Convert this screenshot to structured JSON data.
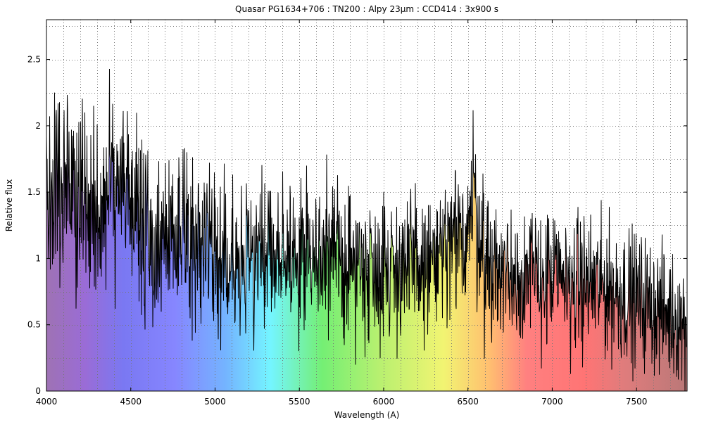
{
  "chart_data": {
    "type": "line",
    "title": "Quasar PG1634+706 : TN200 : Alpy 23µm : CCD414 : 3x900 s",
    "xlabel": "Wavelength (A)",
    "ylabel": "Relative flux",
    "xlim": [
      4000,
      7800
    ],
    "ylim": [
      0,
      2.8
    ],
    "x_ticks": [
      4000,
      4500,
      5000,
      5500,
      6000,
      6500,
      7000,
      7500
    ],
    "x_tick_labels": [
      "4000",
      "4500",
      "5000",
      "5500",
      "6000",
      "6500",
      "7000",
      "7500"
    ],
    "y_ticks": [
      0,
      0.5,
      1,
      1.5,
      2,
      2.5
    ],
    "y_tick_labels": [
      "0",
      "0.5",
      "1",
      "1.5",
      "2",
      "2.5"
    ],
    "x_minor_step": 100,
    "y_minor_step": 0.25,
    "grid": true,
    "legend": "none",
    "background": "visible-spectrum rainbow fill under the curve",
    "series": [
      {
        "color": "#000000",
        "x": [
          4000,
          4030,
          4060,
          4090,
          4120,
          4150,
          4180,
          4210,
          4250,
          4300,
          4350,
          4400,
          4430,
          4460,
          4480,
          4500,
          4550,
          4600,
          4650,
          4700,
          4750,
          4800,
          4850,
          4900,
          4950,
          5000,
          5050,
          5100,
          5150,
          5200,
          5250,
          5300,
          5350,
          5400,
          5450,
          5500,
          5550,
          5600,
          5650,
          5700,
          5750,
          5800,
          5850,
          5900,
          5950,
          6000,
          6050,
          6100,
          6150,
          6200,
          6250,
          6300,
          6350,
          6400,
          6450,
          6480,
          6510,
          6530,
          6550,
          6580,
          6600,
          6650,
          6700,
          6750,
          6800,
          6850,
          6900,
          6950,
          7000,
          7050,
          7100,
          7150,
          7200,
          7250,
          7300,
          7350,
          7400,
          7450,
          7500,
          7550,
          7600,
          7650,
          7700,
          7750,
          7800
        ],
        "y": [
          1.65,
          1.6,
          1.55,
          1.52,
          1.5,
          1.5,
          1.48,
          1.45,
          1.42,
          1.4,
          1.45,
          1.55,
          1.65,
          1.75,
          1.6,
          1.35,
          1.25,
          1.2,
          1.17,
          1.15,
          1.15,
          1.14,
          1.13,
          1.12,
          1.1,
          1.08,
          1.07,
          1.06,
          1.05,
          1.05,
          1.04,
          1.04,
          1.03,
          1.03,
          1.02,
          1.02,
          1.01,
          1.01,
          1.0,
          0.99,
          0.98,
          0.97,
          0.96,
          0.96,
          0.95,
          0.95,
          0.94,
          0.94,
          0.93,
          0.93,
          0.95,
          0.97,
          1.0,
          1.05,
          1.12,
          1.22,
          1.35,
          1.42,
          1.35,
          1.15,
          0.98,
          0.92,
          0.9,
          0.89,
          0.88,
          0.87,
          0.86,
          0.85,
          0.84,
          0.83,
          0.82,
          0.81,
          0.8,
          0.79,
          0.78,
          0.76,
          0.74,
          0.72,
          0.7,
          0.67,
          0.64,
          0.6,
          0.57,
          0.54,
          0.5
        ]
      }
    ]
  }
}
